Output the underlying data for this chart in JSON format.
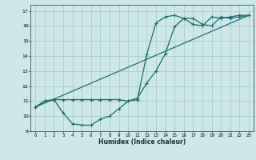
{
  "xlabel": "Humidex (Indice chaleur)",
  "bg_color": "#cce8e8",
  "grid_color": "#aacccc",
  "line_color": "#1a6b6b",
  "xlim": [
    -0.5,
    23.5
  ],
  "ylim": [
    9,
    17.4
  ],
  "xticks": [
    0,
    1,
    2,
    3,
    4,
    5,
    6,
    7,
    8,
    9,
    10,
    11,
    12,
    13,
    14,
    15,
    16,
    17,
    18,
    19,
    20,
    21,
    22,
    23
  ],
  "yticks": [
    9,
    10,
    11,
    12,
    13,
    14,
    15,
    16,
    17
  ],
  "line1_x": [
    0,
    23
  ],
  "line1_y": [
    10.6,
    16.7
  ],
  "line2_x": [
    0,
    1,
    2,
    3,
    4,
    5,
    6,
    7,
    8,
    9,
    10,
    11,
    12,
    13,
    14,
    15,
    16,
    17,
    18,
    19,
    20,
    21,
    22,
    23
  ],
  "line2_y": [
    10.6,
    11.0,
    11.1,
    10.2,
    9.5,
    9.4,
    9.4,
    9.8,
    10.0,
    10.5,
    11.0,
    11.1,
    14.1,
    16.2,
    16.6,
    16.7,
    16.5,
    16.1,
    16.0,
    16.6,
    16.5,
    16.6,
    16.7,
    16.7
  ],
  "line3_x": [
    0,
    1,
    2,
    3,
    4,
    5,
    6,
    7,
    8,
    9,
    10,
    11,
    12,
    13,
    14,
    15,
    16,
    17,
    18,
    19,
    20,
    21,
    22,
    23
  ],
  "line3_y": [
    10.6,
    11.0,
    11.1,
    11.1,
    11.1,
    11.1,
    11.1,
    11.1,
    11.1,
    11.1,
    11.0,
    11.2,
    12.2,
    13.0,
    14.15,
    15.95,
    16.5,
    16.5,
    16.1,
    16.0,
    16.6,
    16.5,
    16.6,
    16.7
  ]
}
